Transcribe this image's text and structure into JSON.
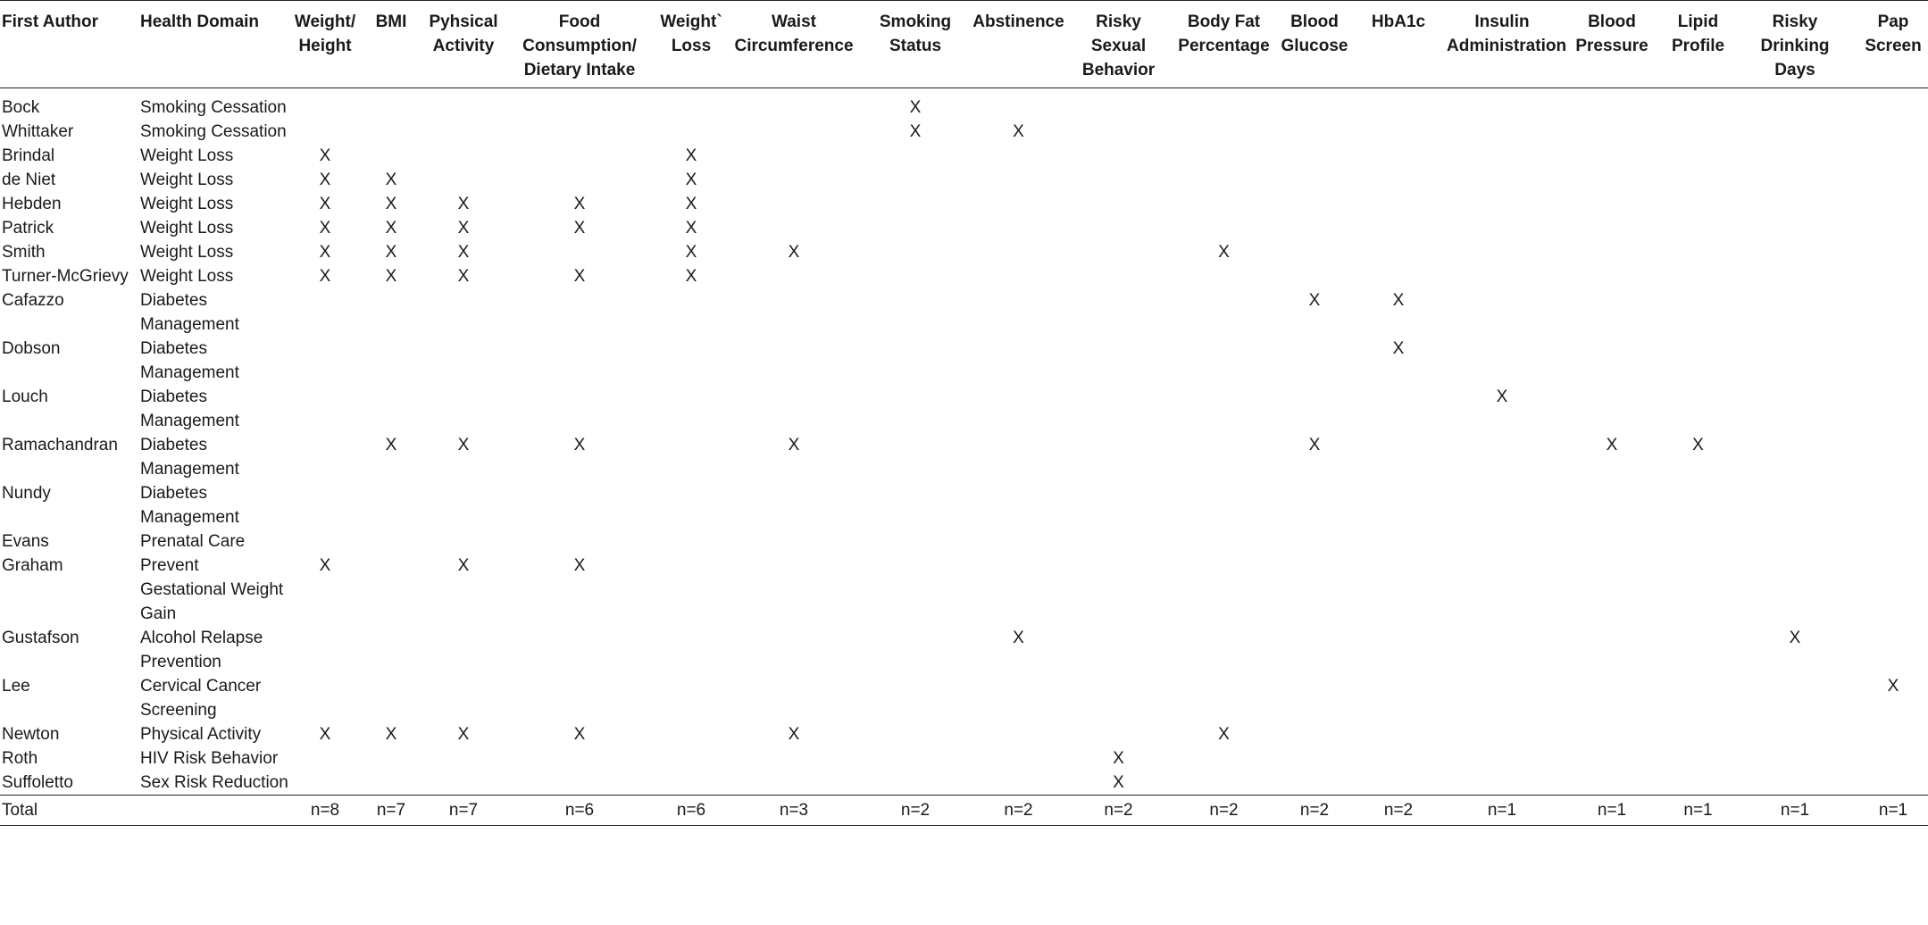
{
  "columns": [
    {
      "key": "author",
      "lines": [
        "First Author"
      ]
    },
    {
      "key": "domain",
      "lines": [
        "Health Domain"
      ]
    },
    {
      "key": "weight_height",
      "lines": [
        "Weight/",
        "Height"
      ]
    },
    {
      "key": "bmi",
      "lines": [
        "BMI"
      ]
    },
    {
      "key": "physical_activity",
      "lines": [
        "Pyhsical",
        "Activity"
      ]
    },
    {
      "key": "food",
      "lines": [
        "Food",
        "Consumption/",
        "Dietary Intake"
      ]
    },
    {
      "key": "weight_loss",
      "lines": [
        "Weight`",
        "Loss"
      ]
    },
    {
      "key": "waist",
      "lines": [
        "Waist",
        "Circumference"
      ]
    },
    {
      "key": "smoking",
      "lines": [
        "Smoking",
        "Status"
      ]
    },
    {
      "key": "abstinence",
      "lines": [
        "Abstinence"
      ]
    },
    {
      "key": "risky_sexual",
      "lines": [
        "Risky",
        "Sexual",
        "Behavior"
      ]
    },
    {
      "key": "body_fat",
      "lines": [
        "Body Fat",
        "Percentage"
      ]
    },
    {
      "key": "blood_glucose",
      "lines": [
        "Blood",
        "Glucose"
      ]
    },
    {
      "key": "hba1c",
      "lines": [
        "HbA1c"
      ]
    },
    {
      "key": "insulin",
      "lines": [
        "Insulin",
        "Administration"
      ]
    },
    {
      "key": "blood_pressure",
      "lines": [
        "Blood",
        "Pressure"
      ]
    },
    {
      "key": "lipid",
      "lines": [
        "Lipid",
        "Profile"
      ]
    },
    {
      "key": "risky_drinking",
      "lines": [
        "Risky",
        "Drinking",
        "Days"
      ]
    },
    {
      "key": "pap",
      "lines": [
        "Pap",
        "Screen"
      ]
    }
  ],
  "rows": [
    {
      "author": "Bock",
      "domain": "Smoking Cessation",
      "marks": [
        "",
        "",
        "",
        "",
        "",
        "",
        "X",
        "",
        "",
        "",
        "",
        "",
        "",
        "",
        "",
        "",
        ""
      ]
    },
    {
      "author": "Whittaker",
      "domain": "Smoking Cessation",
      "marks": [
        "",
        "",
        "",
        "",
        "",
        "",
        "X",
        "X",
        "",
        "",
        "",
        "",
        "",
        "",
        "",
        "",
        ""
      ]
    },
    {
      "author": "Brindal",
      "domain": "Weight Loss",
      "marks": [
        "X",
        "",
        "",
        "",
        "X",
        "",
        "",
        "",
        "",
        "",
        "",
        "",
        "",
        "",
        "",
        "",
        ""
      ]
    },
    {
      "author": "de Niet",
      "domain": "Weight Loss",
      "marks": [
        "X",
        "X",
        "",
        "",
        "X",
        "",
        "",
        "",
        "",
        "",
        "",
        "",
        "",
        "",
        "",
        "",
        ""
      ]
    },
    {
      "author": "Hebden",
      "domain": "Weight Loss",
      "marks": [
        "X",
        "X",
        "X",
        "X",
        "X",
        "",
        "",
        "",
        "",
        "",
        "",
        "",
        "",
        "",
        "",
        "",
        ""
      ]
    },
    {
      "author": "Patrick",
      "domain": "Weight Loss",
      "marks": [
        "X",
        "X",
        "X",
        "X",
        "X",
        "",
        "",
        "",
        "",
        "",
        "",
        "",
        "",
        "",
        "",
        "",
        ""
      ]
    },
    {
      "author": "Smith",
      "domain": "Weight Loss",
      "marks": [
        "X",
        "X",
        "X",
        "",
        "X",
        "X",
        "",
        "",
        "",
        "X",
        "",
        "",
        "",
        "",
        "",
        "",
        ""
      ]
    },
    {
      "author": "Turner-McGrievy",
      "domain": "Weight Loss",
      "marks": [
        "X",
        "X",
        "X",
        "X",
        "X",
        "",
        "",
        "",
        "",
        "",
        "",
        "",
        "",
        "",
        "",
        "",
        ""
      ]
    },
    {
      "author": "Cafazzo",
      "domain": "Diabetes Management",
      "marks": [
        "",
        "",
        "",
        "",
        "",
        "",
        "",
        "",
        "",
        "",
        "X",
        "X",
        "",
        "",
        "",
        "",
        ""
      ]
    },
    {
      "author": "Dobson",
      "domain": "Diabetes Management",
      "marks": [
        "",
        "",
        "",
        "",
        "",
        "",
        "",
        "",
        "",
        "",
        "",
        "X",
        "",
        "",
        "",
        "",
        ""
      ]
    },
    {
      "author": "Louch",
      "domain": "Diabetes Management",
      "marks": [
        "",
        "",
        "",
        "",
        "",
        "",
        "",
        "",
        "",
        "",
        "",
        "",
        "X",
        "",
        "",
        "",
        ""
      ]
    },
    {
      "author": "Ramachandran",
      "domain": "Diabetes Management",
      "marks": [
        "",
        "X",
        "X",
        "X",
        "",
        "X",
        "",
        "",
        "",
        "",
        "X",
        "",
        "",
        "X",
        "X",
        "",
        ""
      ]
    },
    {
      "author": "Nundy",
      "domain": "Diabetes Management",
      "marks": [
        "",
        "",
        "",
        "",
        "",
        "",
        "",
        "",
        "",
        "",
        "",
        "",
        "",
        "",
        "",
        "",
        ""
      ]
    },
    {
      "author": "Evans",
      "domain": "Prenatal Care",
      "marks": [
        "",
        "",
        "",
        "",
        "",
        "",
        "",
        "",
        "",
        "",
        "",
        "",
        "",
        "",
        "",
        "",
        ""
      ]
    },
    {
      "author": "Graham",
      "domain": "Prevent Gestational Weight Gain",
      "marks": [
        "X",
        "",
        "X",
        "X",
        "",
        "",
        "",
        "",
        "",
        "",
        "",
        "",
        "",
        "",
        "",
        "",
        ""
      ]
    },
    {
      "author": "Gustafson",
      "domain": "Alcohol Relapse Prevention",
      "marks": [
        "",
        "",
        "",
        "",
        "",
        "",
        "",
        "X",
        "",
        "",
        "",
        "",
        "",
        "",
        "",
        "X",
        ""
      ]
    },
    {
      "author": "Lee",
      "domain": "Cervical Cancer Screening",
      "marks": [
        "",
        "",
        "",
        "",
        "",
        "",
        "",
        "",
        "",
        "",
        "",
        "",
        "",
        "",
        "",
        "",
        "X"
      ]
    },
    {
      "author": "Newton",
      "domain": "Physical Activity",
      "marks": [
        "X",
        "X",
        "X",
        "X",
        "",
        "X",
        "",
        "",
        "",
        "X",
        "",
        "",
        "",
        "",
        "",
        "",
        ""
      ]
    },
    {
      "author": "Roth",
      "domain": "HIV Risk Behavior",
      "marks": [
        "",
        "",
        "",
        "",
        "",
        "",
        "",
        "",
        "X",
        "",
        "",
        "",
        "",
        "",
        "",
        "",
        ""
      ]
    },
    {
      "author": "Suffoletto",
      "domain": "Sex Risk Reduction",
      "marks": [
        "",
        "",
        "",
        "",
        "",
        "",
        "",
        "",
        "X",
        "",
        "",
        "",
        "",
        "",
        "",
        "",
        ""
      ]
    }
  ],
  "total": {
    "label": "Total",
    "counts": [
      "n=8",
      "n=7",
      "n=7",
      "n=6",
      "n=6",
      "n=3",
      "n=2",
      "n=2",
      "n=2",
      "n=2",
      "n=2",
      "n=2",
      "n=1",
      "n=1",
      "n=1",
      "n=1",
      "n=1"
    ]
  }
}
